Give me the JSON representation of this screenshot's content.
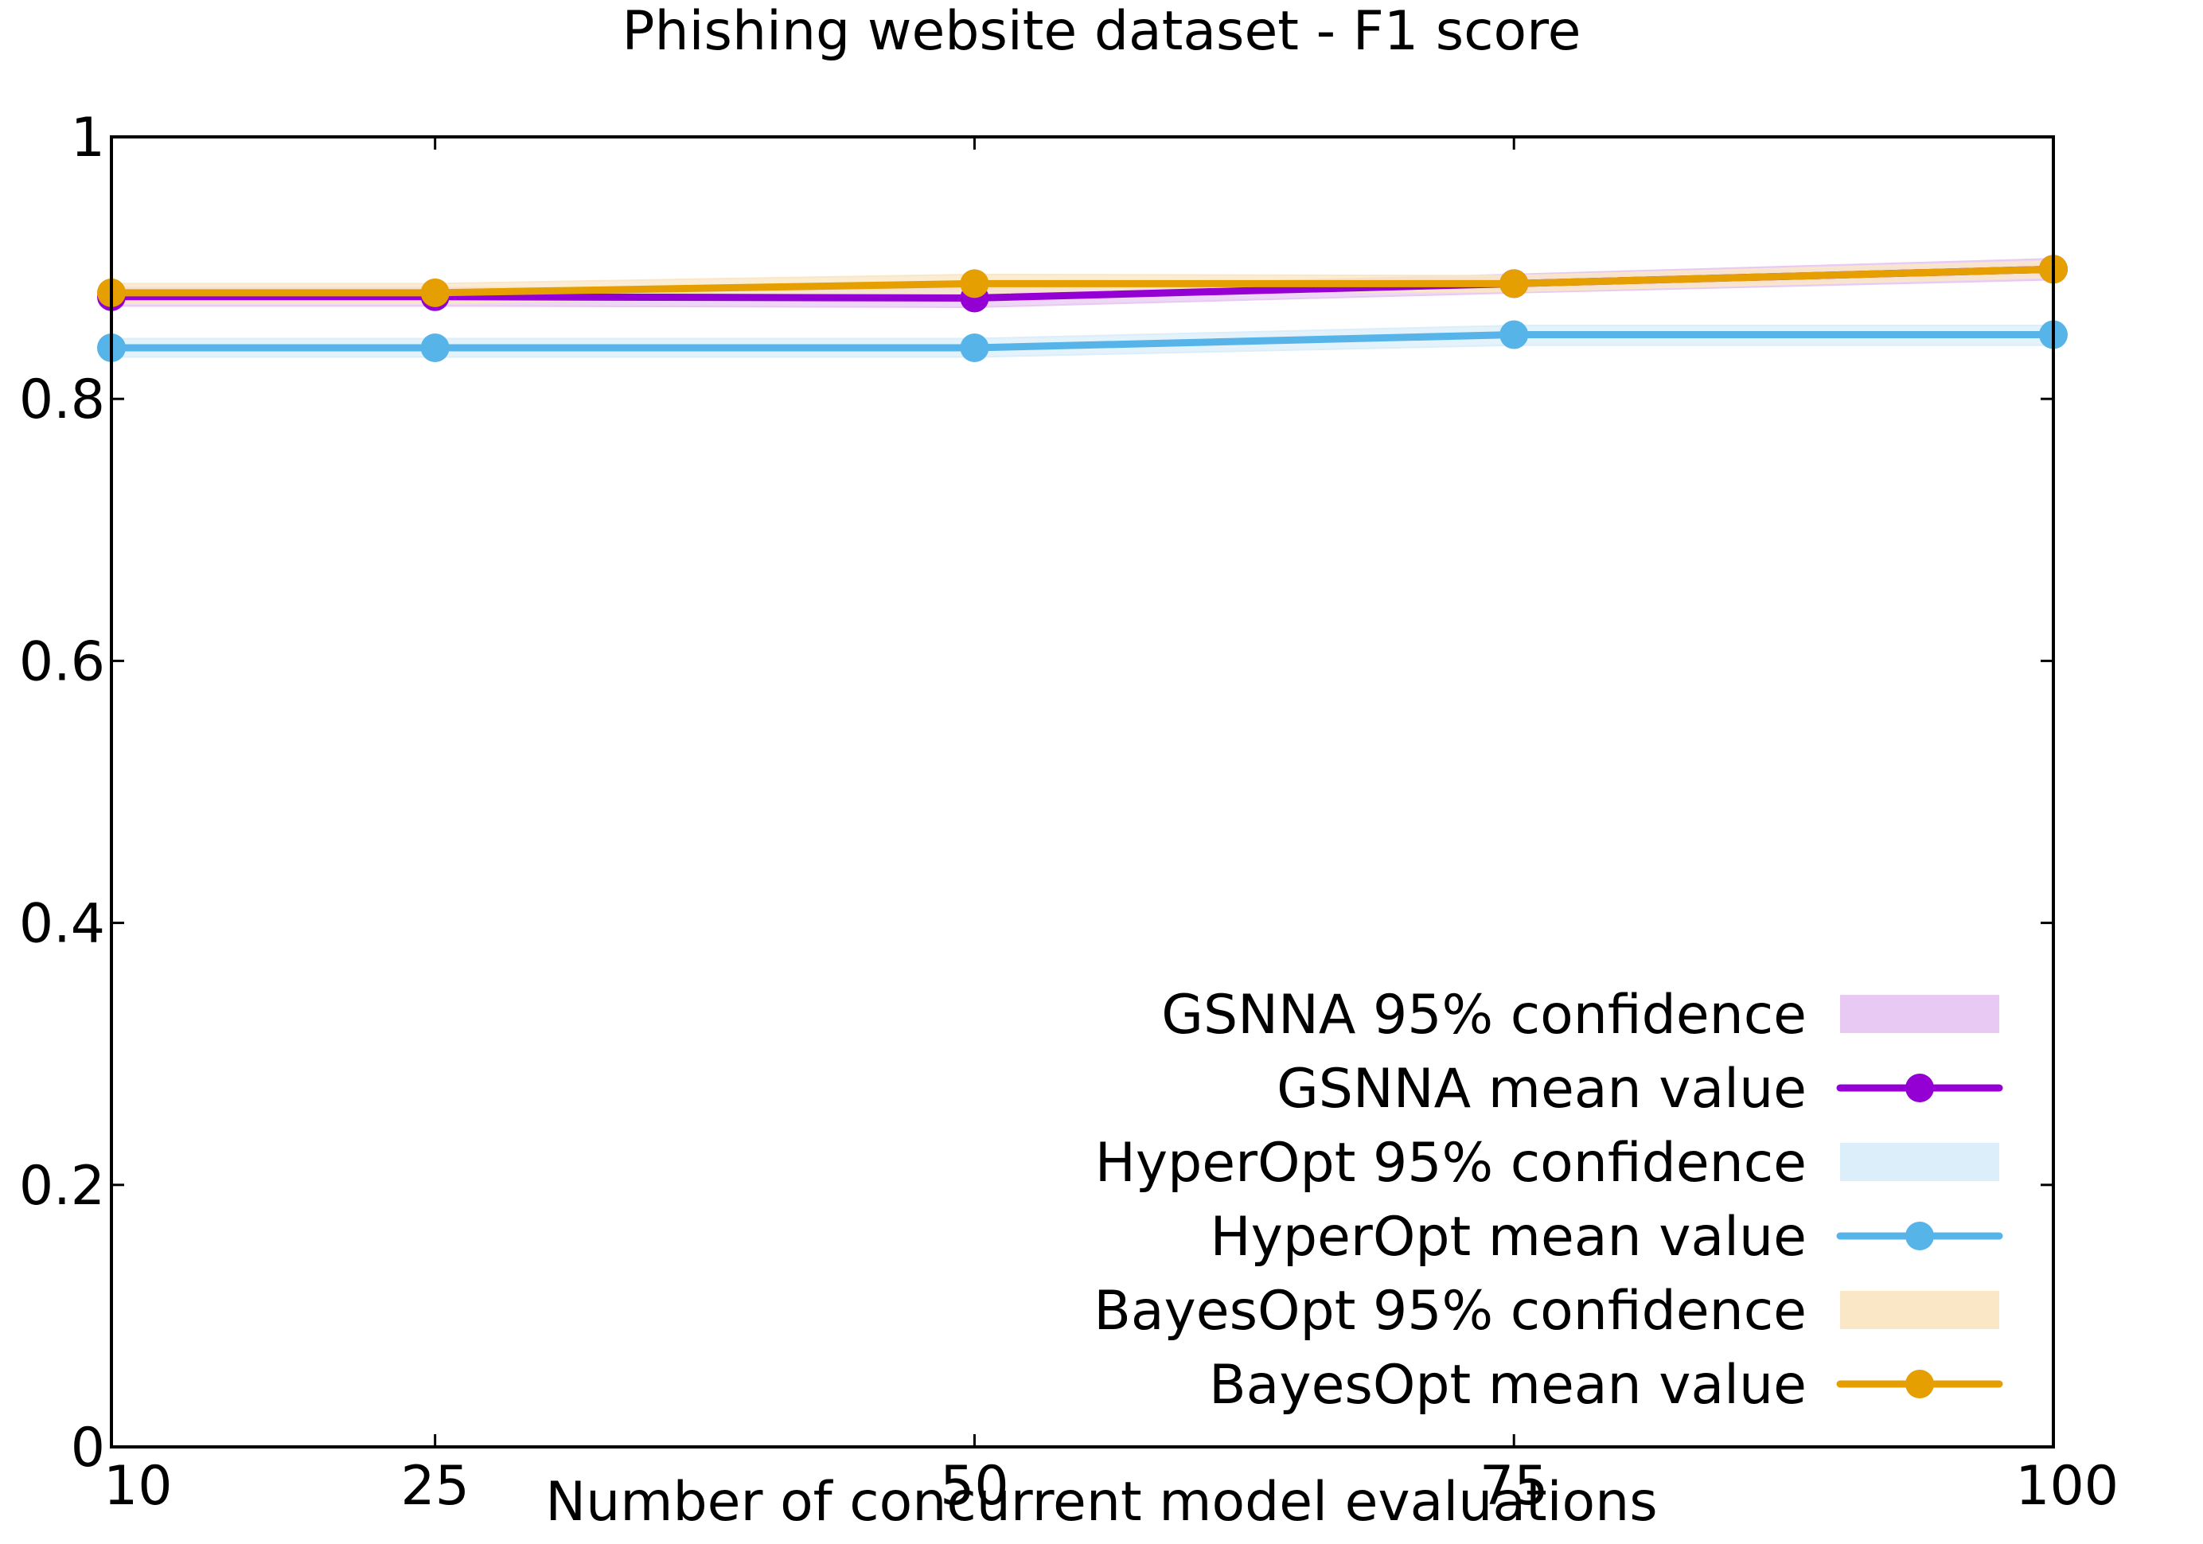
{
  "chart_data": {
    "type": "line",
    "title": "Phishing website dataset - F1 score",
    "xlabel": "Number of concurrent model evaluations",
    "ylabel": "",
    "x": [
      10,
      25,
      50,
      75,
      100
    ],
    "x_ticks": [
      "10",
      "25",
      "50",
      "75",
      "100"
    ],
    "y_ticks": [
      "0",
      "0.2",
      "0.4",
      "0.6",
      "0.8",
      "1"
    ],
    "xlim": [
      10,
      100
    ],
    "ylim": [
      0,
      1
    ],
    "grid": false,
    "legend_position": "bottom-right",
    "series": [
      {
        "name": "GSNNA mean value",
        "band_name": "GSNNA 95% confidence",
        "color": "#9400d3",
        "band_color": "#e8c9f3",
        "values": [
          0.878,
          0.878,
          0.877,
          0.888,
          0.899
        ],
        "lower": [
          0.871,
          0.871,
          0.87,
          0.881,
          0.891
        ],
        "upper": [
          0.885,
          0.885,
          0.884,
          0.895,
          0.907
        ]
      },
      {
        "name": "HyperOpt mean value",
        "band_name": "HyperOpt 95% confidence",
        "color": "#56b4e9",
        "band_color": "#dbeefa",
        "values": [
          0.839,
          0.839,
          0.839,
          0.849,
          0.849
        ],
        "lower": [
          0.832,
          0.832,
          0.832,
          0.841,
          0.841
        ],
        "upper": [
          0.846,
          0.846,
          0.846,
          0.856,
          0.856
        ]
      },
      {
        "name": "BayesOpt mean value",
        "band_name": "BayesOpt 95% confidence",
        "color": "#e69f00",
        "band_color": "#f9e7c6",
        "values": [
          0.881,
          0.881,
          0.888,
          0.888,
          0.899
        ],
        "lower": [
          0.873,
          0.873,
          0.881,
          0.882,
          0.893
        ],
        "upper": [
          0.888,
          0.888,
          0.895,
          0.894,
          0.905
        ]
      }
    ]
  }
}
